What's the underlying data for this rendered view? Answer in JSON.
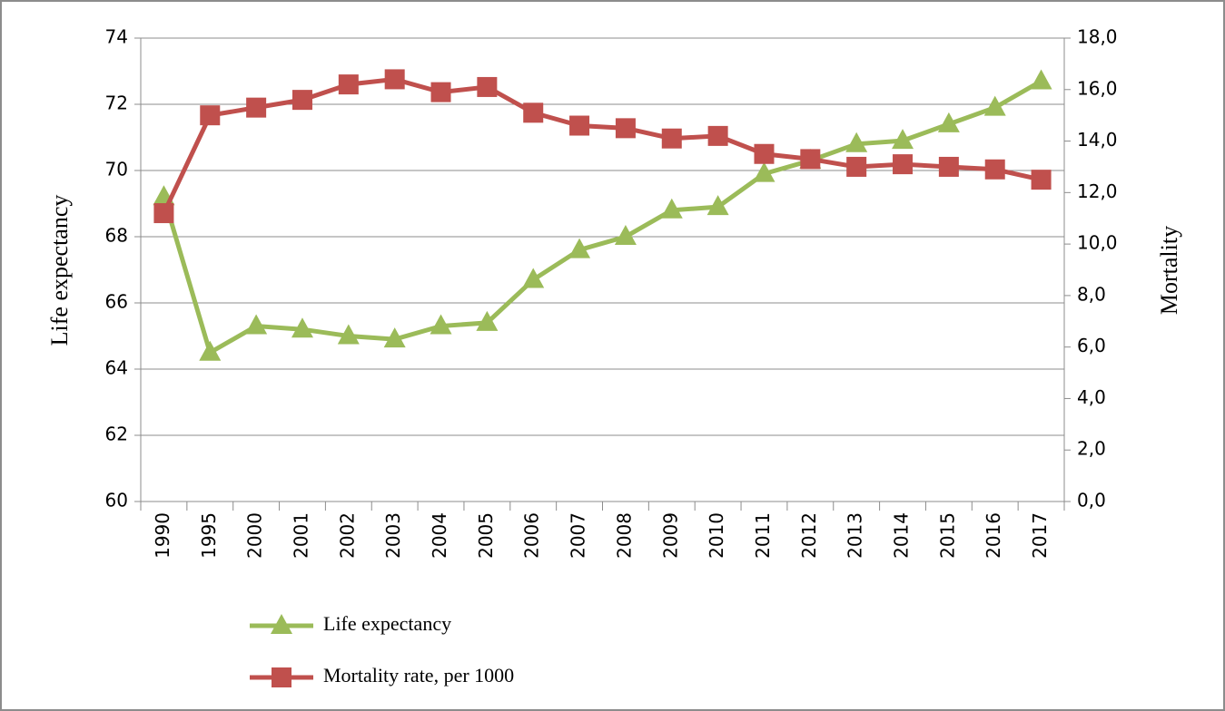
{
  "chart_data": {
    "type": "line",
    "categories": [
      "1990",
      "1995",
      "2000",
      "2001",
      "2002",
      "2003",
      "2004",
      "2005",
      "2006",
      "2007",
      "2008",
      "2009",
      "2010",
      "2011",
      "2012",
      "2013",
      "2014",
      "2015",
      "2016",
      "2017"
    ],
    "series": [
      {
        "name": "Life expectancy",
        "color": "#9bbb59",
        "marker": "triangle",
        "values": [
          69.2,
          64.5,
          65.3,
          65.2,
          65.0,
          64.9,
          65.3,
          65.4,
          66.7,
          67.6,
          68.0,
          68.8,
          68.9,
          69.9,
          70.3,
          70.8,
          70.9,
          71.4,
          71.9,
          72.7
        ]
      },
      {
        "name": "Mortality rate, per 1000",
        "color": "#c0504d",
        "marker": "square",
        "axis": "y2",
        "values": [
          11.2,
          15.0,
          15.3,
          15.6,
          16.2,
          16.4,
          15.9,
          16.1,
          15.1,
          14.6,
          14.5,
          14.1,
          14.2,
          13.5,
          13.3,
          13.0,
          13.1,
          13.0,
          12.9,
          12.5
        ]
      }
    ],
    "y_label": "Life expectancy",
    "y2_label": "Mortality",
    "ylim": [
      60,
      74
    ],
    "yticks": [
      60,
      62,
      64,
      66,
      68,
      70,
      72,
      74
    ],
    "y2lim": [
      0,
      18
    ],
    "y2ticks": [
      {
        "value": 0,
        "label": "0,0"
      },
      {
        "value": 2,
        "label": "2,0"
      },
      {
        "value": 4,
        "label": "4,0"
      },
      {
        "value": 6,
        "label": "6,0"
      },
      {
        "value": 8,
        "label": "8,0"
      },
      {
        "value": 10,
        "label": "10,0"
      },
      {
        "value": 12,
        "label": "12,0"
      },
      {
        "value": 14,
        "label": "14,0"
      },
      {
        "value": 16,
        "label": "16,0"
      },
      {
        "value": 18,
        "label": "18,0"
      }
    ],
    "grid": true
  }
}
